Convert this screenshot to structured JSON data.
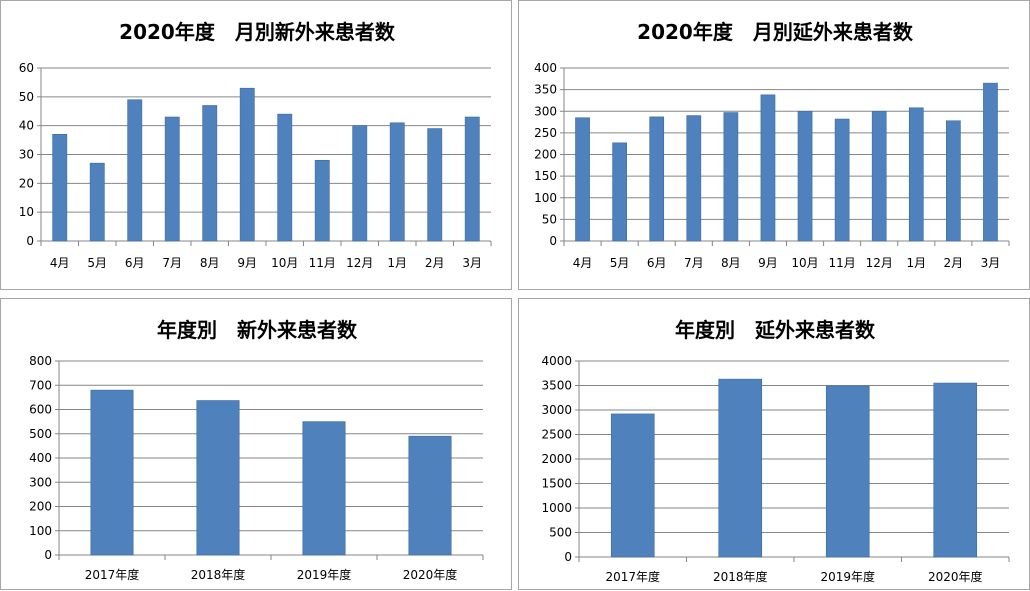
{
  "chart_data": [
    {
      "type": "bar",
      "title": "2020年度　月別新外来患者数",
      "categories": [
        "4月",
        "5月",
        "6月",
        "7月",
        "8月",
        "9月",
        "10月",
        "11月",
        "12月",
        "1月",
        "2月",
        "3月"
      ],
      "values": [
        37,
        27,
        49,
        43,
        47,
        53,
        44,
        28,
        40,
        41,
        39,
        43
      ],
      "yticks": [
        "0",
        "10",
        "20",
        "30",
        "40",
        "50",
        "60"
      ],
      "ylim": [
        0,
        60
      ],
      "xlabel": "",
      "ylabel": "",
      "grid": true,
      "color": "#4f81bd"
    },
    {
      "type": "bar",
      "title": "2020年度　月別延外来患者数",
      "categories": [
        "4月",
        "5月",
        "6月",
        "7月",
        "8月",
        "9月",
        "10月",
        "11月",
        "12月",
        "1月",
        "2月",
        "3月"
      ],
      "values": [
        285,
        227,
        287,
        290,
        297,
        338,
        300,
        282,
        300,
        308,
        278,
        365
      ],
      "yticks": [
        "0",
        "50",
        "100",
        "150",
        "200",
        "250",
        "300",
        "350",
        "400"
      ],
      "ylim": [
        0,
        400
      ],
      "xlabel": "",
      "ylabel": "",
      "grid": true,
      "color": "#4f81bd"
    },
    {
      "type": "bar",
      "title": "年度別　新外来患者数",
      "categories": [
        "2017年度",
        "2018年度",
        "2019年度",
        "2020年度"
      ],
      "values": [
        680,
        637,
        550,
        490
      ],
      "yticks": [
        "0",
        "100",
        "200",
        "300",
        "400",
        "500",
        "600",
        "700",
        "800"
      ],
      "ylim": [
        0,
        800
      ],
      "xlabel": "",
      "ylabel": "",
      "grid": true,
      "color": "#4f81bd"
    },
    {
      "type": "bar",
      "title": "年度別　延外来患者数",
      "categories": [
        "2017年度",
        "2018年度",
        "2019年度",
        "2020年度"
      ],
      "values": [
        2920,
        3630,
        3490,
        3550
      ],
      "yticks": [
        "0",
        "500",
        "1000",
        "1500",
        "2000",
        "2500",
        "3000",
        "3500",
        "4000"
      ],
      "ylim": [
        0,
        4000
      ],
      "xlabel": "",
      "ylabel": "",
      "grid": true,
      "color": "#4f81bd"
    }
  ]
}
